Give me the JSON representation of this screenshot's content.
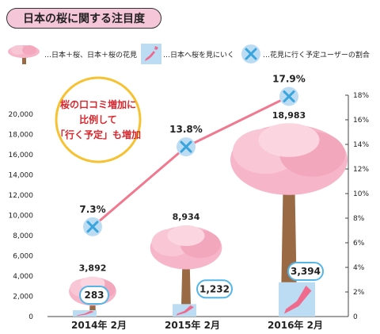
{
  "title": "日本の桜に関する注目度",
  "legend": [
    {
      "icon": "cherry-tree-icon",
      "label": "…日本＋桜、日本＋桜の花見"
    },
    {
      "icon": "japan-map-icon",
      "label": "…日本へ桜を見にいく"
    },
    {
      "icon": "marker-icon",
      "label": "…花見に行く予定ユーザーの割合"
    }
  ],
  "annotation": [
    "桜の口コミ増加に",
    "比例して",
    "「行く予定」も増加"
  ],
  "colors": {
    "title_bg": "#f5c6d8",
    "line": "#f0788f",
    "tree_pink": "#f6b5c8",
    "trunk": "#9a6a44",
    "map_bg": "#bcdcf3",
    "badge_border": "#55b6e6",
    "note_border": "#f7c231",
    "note_text": "#d9262c"
  },
  "chart_data": {
    "type": "bar+line",
    "categories": [
      "2014年 2月",
      "2015年 2月",
      "2016年 2月"
    ],
    "series": [
      {
        "name": "日本＋桜、日本＋桜の花見",
        "values": [
          3892,
          8934,
          18983
        ],
        "display": [
          "3,892",
          "8,934",
          "18,983"
        ]
      },
      {
        "name": "日本へ桜を見にいく",
        "values": [
          283,
          1232,
          3394
        ],
        "display": [
          "283",
          "1,232",
          "3,394"
        ]
      },
      {
        "name": "花見に行く予定ユーザーの割合",
        "values": [
          7.3,
          13.8,
          17.9
        ],
        "display": [
          "7.3%",
          "13.8%",
          "17.9%"
        ],
        "axis": "right"
      }
    ],
    "left_axis": {
      "ylim": [
        0,
        20000
      ],
      "ticks": [
        "0",
        "2,000",
        "4,000",
        "6,000",
        "8,000",
        "10,000",
        "12,000",
        "14,000",
        "16,000",
        "18,000",
        "20,000"
      ]
    },
    "right_axis": {
      "ylim": [
        0,
        18
      ],
      "ticks": [
        "0",
        "2%",
        "4%",
        "6%",
        "8%",
        "10%",
        "12%",
        "14%",
        "16%",
        "18%"
      ]
    },
    "grid": false
  }
}
